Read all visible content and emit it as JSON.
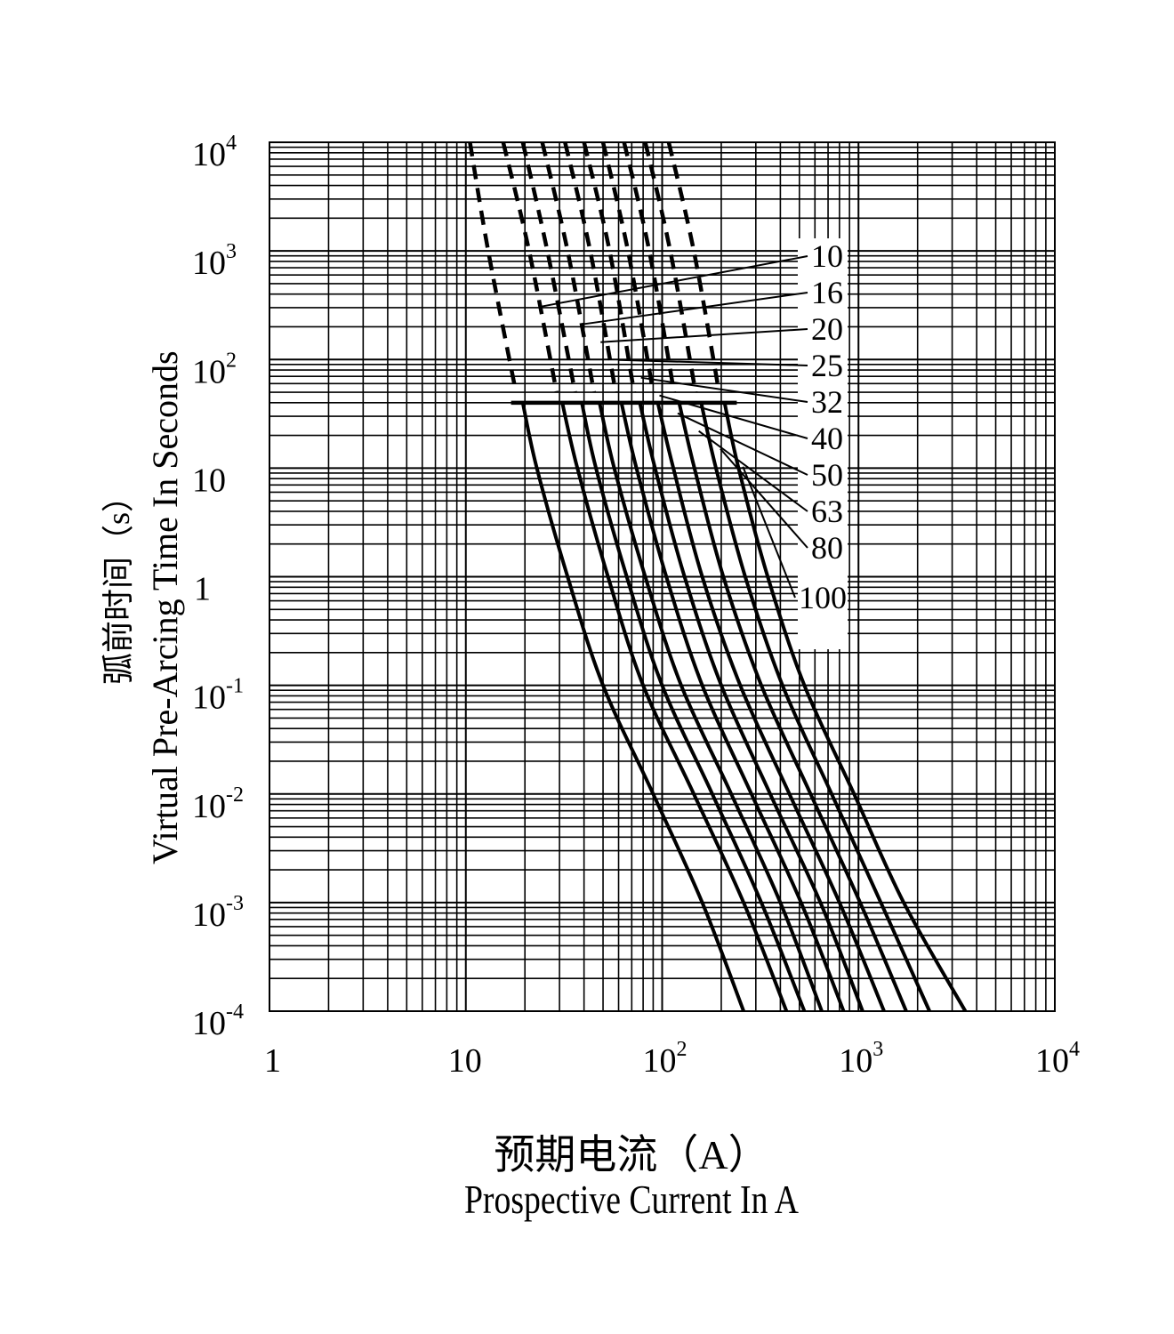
{
  "chart_data": {
    "type": "line",
    "x_scale": "log",
    "y_scale": "log",
    "xlim": [
      1,
      10000
    ],
    "ylim": [
      0.0001,
      10000
    ],
    "xlabel_cn": "预期电流（A）",
    "xlabel": "Prospective Current In A",
    "ylabel_cn": "弧前时间（s）",
    "ylabel": "Virtual Pre-Arcing Time In Seconds",
    "x_ticks": [
      {
        "base": "1",
        "exp": ""
      },
      {
        "base": "10",
        "exp": ""
      },
      {
        "base": "10",
        "exp": "2"
      },
      {
        "base": "10",
        "exp": "3"
      },
      {
        "base": "10",
        "exp": "4"
      }
    ],
    "y_ticks": [
      {
        "base": "10",
        "exp": "4"
      },
      {
        "base": "10",
        "exp": "3"
      },
      {
        "base": "10",
        "exp": "2"
      },
      {
        "base": "10",
        "exp": ""
      },
      {
        "base": "1",
        "exp": ""
      },
      {
        "base": "10",
        "exp": "-1"
      },
      {
        "base": "10",
        "exp": "-2"
      },
      {
        "base": "10",
        "exp": "-3"
      },
      {
        "base": "10",
        "exp": "-4"
      }
    ],
    "grid": true,
    "cutoff_line": {
      "x": [
        17,
        240
      ],
      "y": 40
    },
    "series": [
      {
        "name": "10",
        "dashed": {
          "x": [
            10.5,
            13,
            18
          ],
          "y": [
            10000,
            1000,
            50
          ]
        },
        "x": [
          19.5,
          23,
          33,
          50,
          90,
          160,
          260
        ],
        "y": [
          40,
          10,
          1,
          0.1,
          0.01,
          0.001,
          0.0001
        ]
      },
      {
        "name": "16",
        "dashed": {
          "x": [
            15.5,
            21,
            29
          ],
          "y": [
            10000,
            1000,
            50
          ]
        },
        "x": [
          31,
          37,
          53,
          80,
          145,
          260,
          430
        ],
        "y": [
          40,
          10,
          1,
          0.1,
          0.01,
          0.001,
          0.0001
        ]
      },
      {
        "name": "20",
        "dashed": {
          "x": [
            19.5,
            26,
            36
          ],
          "y": [
            10000,
            1000,
            50
          ]
        },
        "x": [
          39,
          46,
          66,
          100,
          180,
          320,
          530
        ],
        "y": [
          40,
          10,
          1,
          0.1,
          0.01,
          0.001,
          0.0001
        ]
      },
      {
        "name": "25",
        "dashed": {
          "x": [
            24.5,
            33,
            45
          ],
          "y": [
            10000,
            1000,
            50
          ]
        },
        "x": [
          48,
          57,
          82,
          125,
          225,
          400,
          650
        ],
        "y": [
          40,
          10,
          1,
          0.1,
          0.01,
          0.001,
          0.0001
        ]
      },
      {
        "name": "32",
        "dashed": {
          "x": [
            32,
            43,
            58
          ],
          "y": [
            10000,
            1000,
            50
          ]
        },
        "x": [
          62,
          74,
          105,
          160,
          285,
          510,
          840
        ],
        "y": [
          40,
          10,
          1,
          0.1,
          0.01,
          0.001,
          0.0001
        ]
      },
      {
        "name": "40",
        "dashed": {
          "x": [
            40,
            54,
            72
          ],
          "y": [
            10000,
            1000,
            50
          ]
        },
        "x": [
          77,
          92,
          130,
          200,
          355,
          640,
          1050
        ],
        "y": [
          40,
          10,
          1,
          0.1,
          0.01,
          0.001,
          0.0001
        ]
      },
      {
        "name": "50",
        "dashed": {
          "x": [
            50,
            67,
            90
          ],
          "y": [
            10000,
            1000,
            50
          ]
        },
        "x": [
          95,
          114,
          160,
          250,
          445,
          800,
          1350
        ],
        "y": [
          40,
          10,
          1,
          0.1,
          0.01,
          0.001,
          0.0001
        ]
      },
      {
        "name": "63",
        "dashed": {
          "x": [
            64,
            86,
            115
          ],
          "y": [
            10000,
            1000,
            50
          ]
        },
        "x": [
          122,
          146,
          205,
          320,
          570,
          1020,
          1750
        ],
        "y": [
          40,
          10,
          1,
          0.1,
          0.01,
          0.001,
          0.0001
        ]
      },
      {
        "name": "80",
        "dashed": {
          "x": [
            82,
            110,
            148
          ],
          "y": [
            10000,
            1000,
            50
          ]
        },
        "x": [
          158,
          188,
          265,
          410,
          730,
          1300,
          2300
        ],
        "y": [
          40,
          10,
          1,
          0.1,
          0.01,
          0.001,
          0.0001
        ]
      },
      {
        "name": "100",
        "dashed": {
          "x": [
            108,
            145,
            195
          ],
          "y": [
            10000,
            1000,
            50
          ]
        },
        "x": [
          208,
          245,
          345,
          530,
          950,
          1700,
          3500
        ],
        "y": [
          40,
          10,
          1,
          0.1,
          0.01,
          0.001,
          0.0001
        ]
      }
    ],
    "legend_placement": "right, labels with leader lines"
  }
}
